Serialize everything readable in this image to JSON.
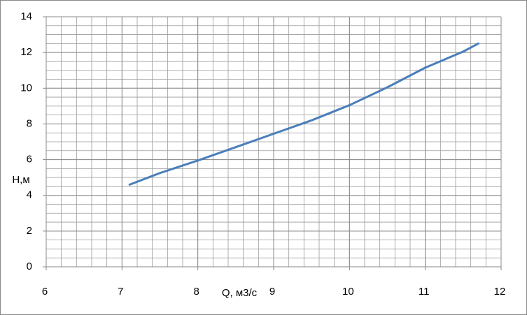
{
  "chart_data": {
    "type": "line",
    "x_label": "Q, м3/с",
    "y_label": "H,м",
    "x": [
      7.1,
      7.5,
      8,
      8.5,
      9,
      9.5,
      10,
      10.5,
      11,
      11.5,
      11.7
    ],
    "series": [
      {
        "color": "#4a7ebb",
        "values": [
          4.6,
          5.25,
          5.95,
          6.7,
          7.45,
          8.2,
          9.05,
          10.05,
          11.15,
          12.05,
          12.5
        ]
      }
    ],
    "xlim": [
      6,
      12
    ],
    "xticks": [
      6,
      7,
      8,
      9,
      10,
      11,
      12
    ],
    "ylim": [
      0,
      14
    ],
    "yticks": [
      0,
      2,
      4,
      6,
      8,
      10,
      12,
      14
    ],
    "grid": true,
    "minor_grid": {
      "x": 0.2,
      "y": 0.5
    }
  }
}
